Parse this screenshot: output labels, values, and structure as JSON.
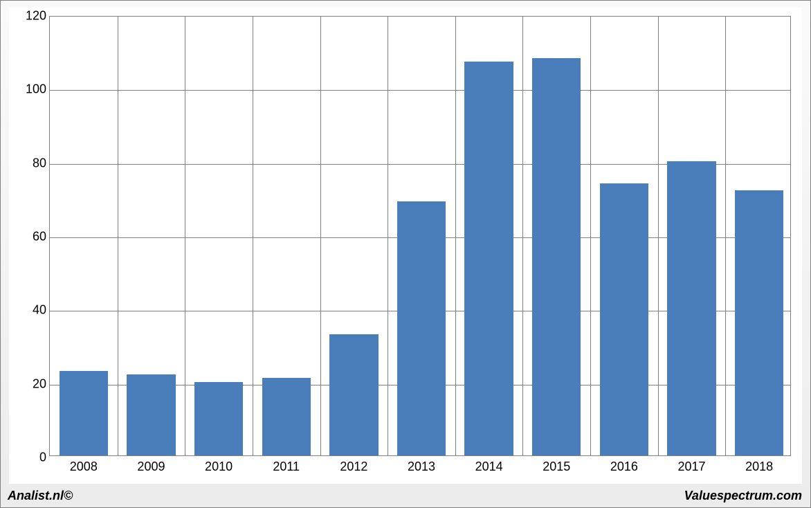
{
  "chart": {
    "type": "bar",
    "categories": [
      "2008",
      "2009",
      "2010",
      "2011",
      "2012",
      "2013",
      "2014",
      "2015",
      "2016",
      "2017",
      "2018"
    ],
    "values": [
      23,
      22,
      20,
      21,
      33,
      69,
      107,
      108,
      74,
      80,
      72
    ],
    "bar_color": "#4a7ebb",
    "ylim": [
      0,
      120
    ],
    "ytick_step": 20,
    "grid_color": "#808080",
    "background_color": "#ffffff",
    "bar_width_ratio": 0.72,
    "tick_fontsize": 18,
    "y_ticks": [
      "0",
      "20",
      "40",
      "60",
      "80",
      "100",
      "120"
    ]
  },
  "footer": {
    "left": "Analist.nl©",
    "right": "Valuespectrum.com"
  }
}
